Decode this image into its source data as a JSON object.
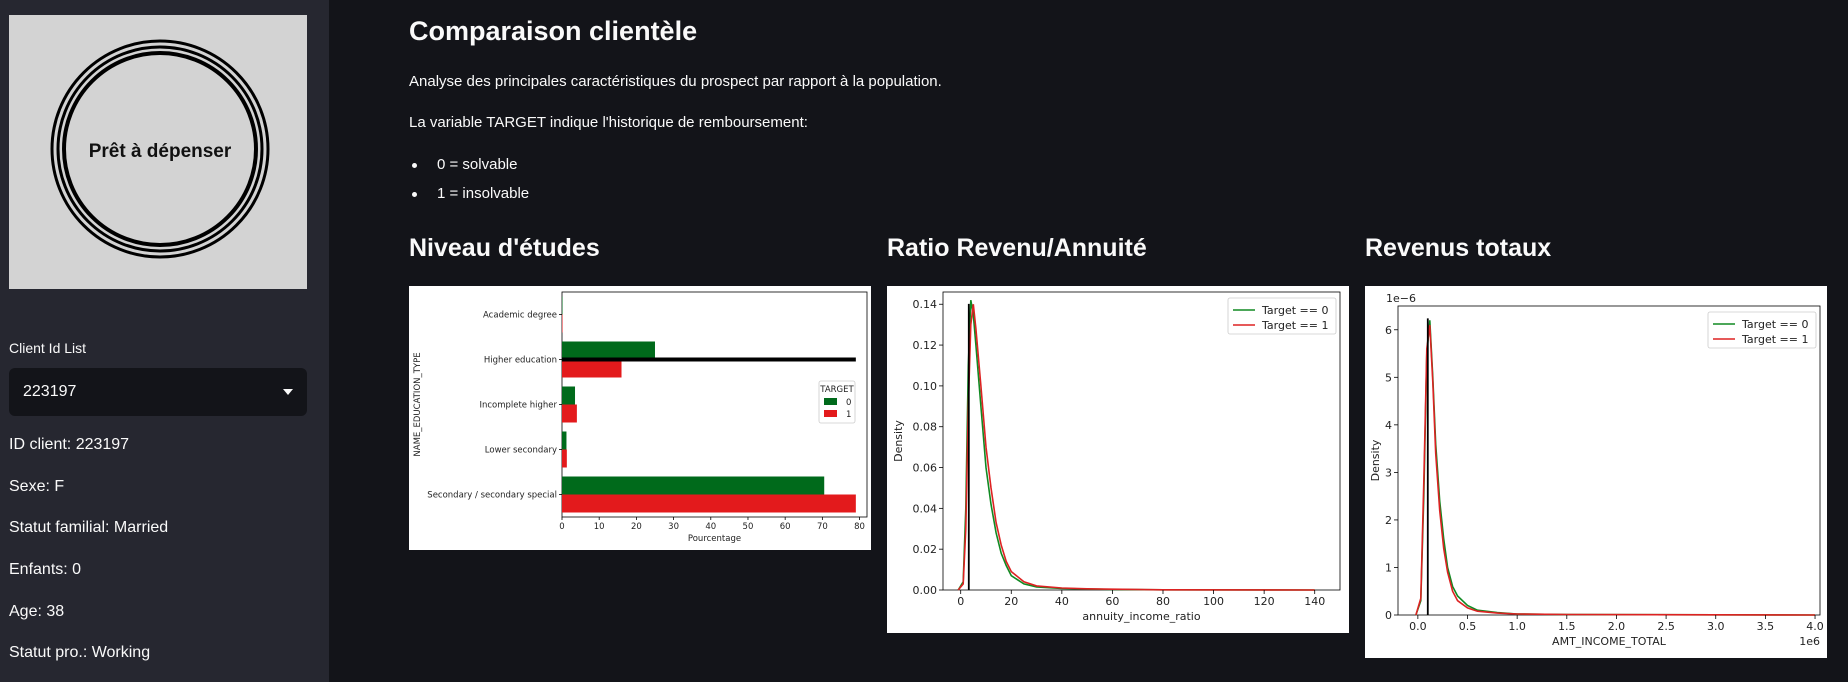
{
  "sidebar": {
    "logo_text": "Prêt à dépenser",
    "client_list_label": "Client Id List",
    "selected_client": "223197",
    "info": [
      "ID client: 223197",
      "Sexe: F",
      "Statut familial: Married",
      "Enfants: 0",
      "Age: 38",
      "Statut pro.: Working"
    ]
  },
  "main": {
    "title": "Comparaison clientèle",
    "intro": "Analyse des principales caractéristiques du prospect par rapport à la population.",
    "target_text": "La variable TARGET indique l'historique de remboursement:",
    "bullets": [
      "0 = solvable",
      "1 = insolvable"
    ]
  },
  "sections": {
    "education": "Niveau d'études",
    "ratio": "Ratio Revenu/Annuité",
    "income": "Revenus totaux"
  },
  "colors": {
    "green": "#006a1b",
    "red": "#e31a1c",
    "green_line": "#108a22",
    "red_line": "#dd2222"
  },
  "chart_data": [
    {
      "type": "bar",
      "orientation": "horizontal",
      "categories": [
        "Academic degree",
        "Higher education",
        "Incomplete higher",
        "Lower secondary",
        "Secondary / secondary special"
      ],
      "series": [
        {
          "name": "0",
          "values": [
            0.1,
            25,
            3.5,
            1.2,
            70.5
          ]
        },
        {
          "name": "1",
          "values": [
            0.05,
            16,
            4,
            1.3,
            79
          ]
        }
      ],
      "ylabel": "NAME_EDUCATION_TYPE",
      "xlabel": "Pourcentage",
      "xlim": [
        0,
        82
      ],
      "xticks": [
        0,
        10,
        20,
        30,
        40,
        50,
        60,
        70,
        80
      ],
      "legend_title": "TARGET",
      "legend_position": "right",
      "client_marker": {
        "category": "Higher education",
        "value": 79
      }
    },
    {
      "type": "line",
      "xlabel": "annuity_income_ratio",
      "ylabel": "Density",
      "xlim": [
        -7,
        150
      ],
      "ylim": [
        0,
        0.146
      ],
      "xticks": [
        0,
        20,
        40,
        60,
        80,
        100,
        120,
        140
      ],
      "yticks": [
        "0.00",
        "0.02",
        "0.04",
        "0.06",
        "0.08",
        "0.10",
        "0.12",
        "0.14"
      ],
      "legend_position": "top-right",
      "client_marker": {
        "x": 3.2
      },
      "series": [
        {
          "name": "Target == 0",
          "x": [
            -1,
            1,
            2,
            3,
            4,
            5,
            6,
            8,
            10,
            12,
            14,
            16,
            18,
            20,
            25,
            30,
            40,
            50,
            60,
            80,
            140
          ],
          "y": [
            0,
            0.004,
            0.04,
            0.11,
            0.142,
            0.135,
            0.12,
            0.09,
            0.06,
            0.042,
            0.028,
            0.018,
            0.012,
            0.007,
            0.003,
            0.0015,
            0.0008,
            0.0005,
            0.0003,
            0.0001,
            0
          ]
        },
        {
          "name": "Target == 1",
          "x": [
            -1,
            1,
            2,
            3,
            4,
            5,
            6,
            8,
            10,
            12,
            14,
            16,
            18,
            20,
            25,
            30,
            40,
            50,
            60,
            80,
            140
          ],
          "y": [
            0,
            0.003,
            0.03,
            0.09,
            0.13,
            0.14,
            0.128,
            0.1,
            0.07,
            0.05,
            0.033,
            0.022,
            0.014,
            0.009,
            0.004,
            0.002,
            0.001,
            0.0006,
            0.0004,
            0.0001,
            0
          ]
        }
      ]
    },
    {
      "type": "line",
      "xlabel": "AMT_INCOME_TOTAL",
      "ylabel": "Density",
      "x_multiplier": "1e6",
      "y_multiplier": "1e−6",
      "xlim": [
        -0.2,
        4.05
      ],
      "ylim": [
        0,
        6.5
      ],
      "xticks": [
        "0.0",
        "0.5",
        "1.0",
        "1.5",
        "2.0",
        "2.5",
        "3.0",
        "3.5",
        "4.0"
      ],
      "yticks": [
        "0",
        "1",
        "2",
        "3",
        "4",
        "5",
        "6"
      ],
      "legend_position": "top-right",
      "client_marker": {
        "x": 0.1
      },
      "series": [
        {
          "name": "Target == 0",
          "x": [
            -0.02,
            0.03,
            0.06,
            0.09,
            0.12,
            0.15,
            0.18,
            0.22,
            0.26,
            0.3,
            0.35,
            0.4,
            0.5,
            0.6,
            0.8,
            1.0,
            1.5,
            4.0
          ],
          "y": [
            0,
            0.3,
            2.5,
            5.5,
            6.2,
            5.0,
            3.6,
            2.4,
            1.6,
            1.0,
            0.6,
            0.4,
            0.2,
            0.1,
            0.05,
            0.02,
            0.01,
            0
          ]
        },
        {
          "name": "Target == 1",
          "x": [
            -0.02,
            0.03,
            0.06,
            0.09,
            0.12,
            0.15,
            0.18,
            0.22,
            0.26,
            0.3,
            0.35,
            0.4,
            0.5,
            0.6,
            0.8,
            1.0,
            1.5,
            4.0
          ],
          "y": [
            0,
            0.35,
            2.8,
            5.6,
            6.1,
            4.9,
            3.4,
            2.2,
            1.4,
            0.9,
            0.5,
            0.3,
            0.15,
            0.08,
            0.04,
            0.02,
            0.01,
            0
          ]
        }
      ]
    }
  ]
}
